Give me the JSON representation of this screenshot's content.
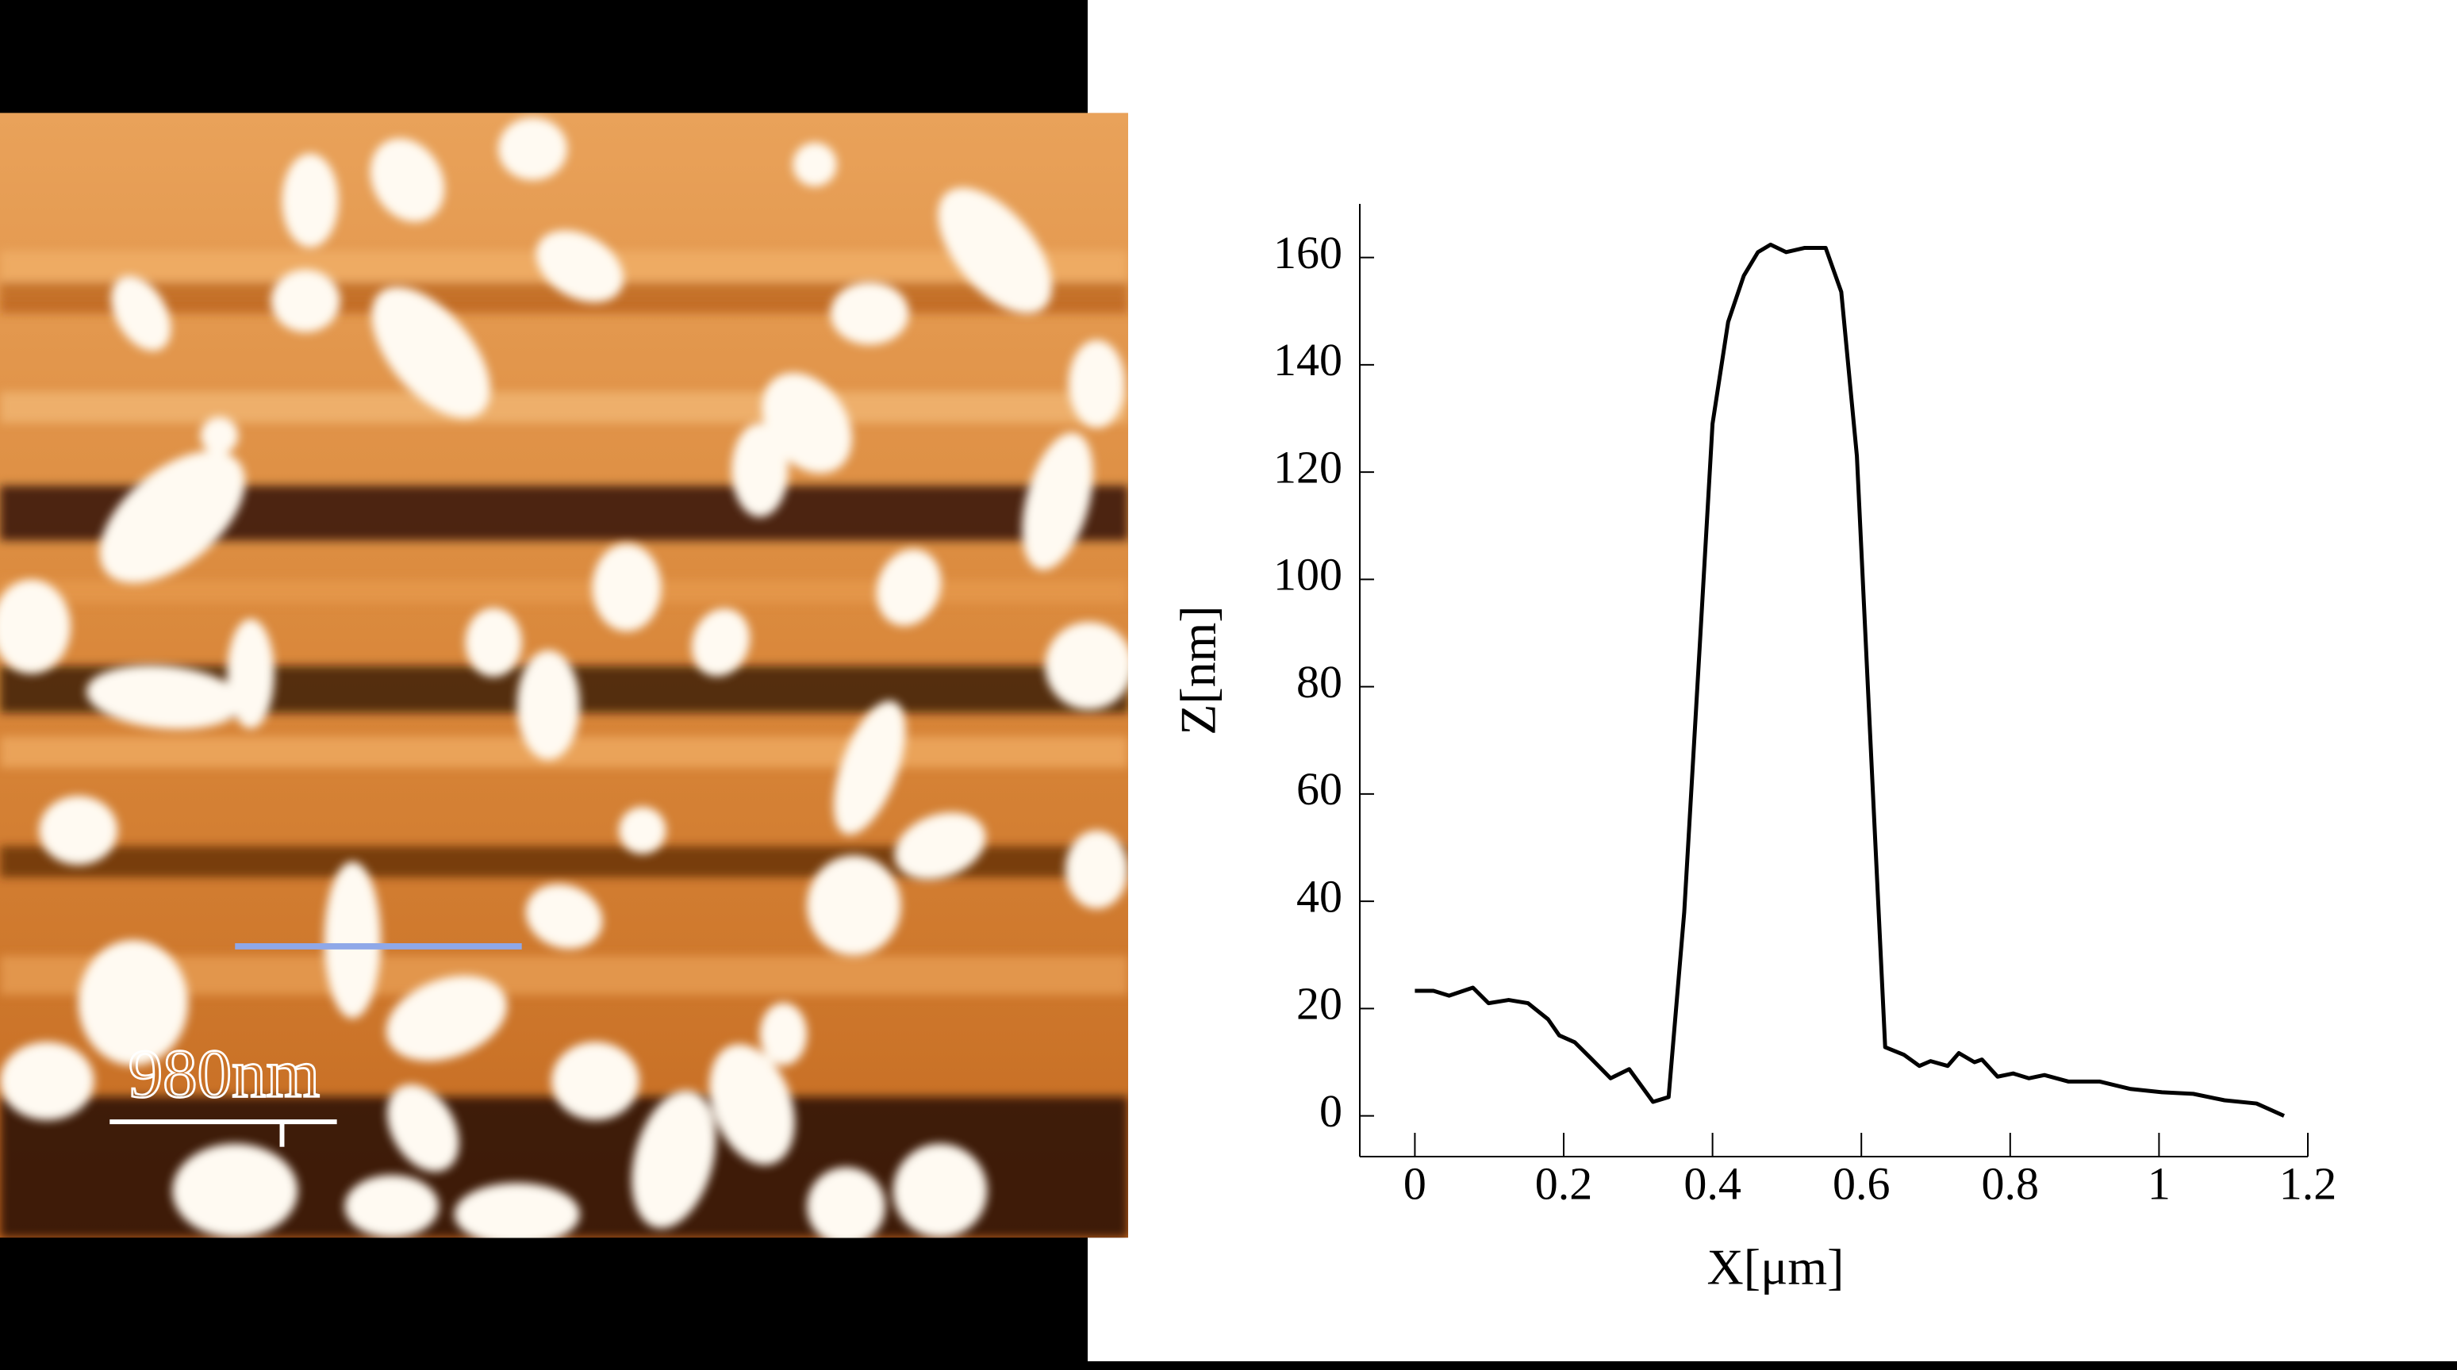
{
  "image": {
    "scale_bar_label": "980nm"
  },
  "chart_data": {
    "type": "line",
    "xlabel": "X[μm]",
    "ylabel": "Z[nm]",
    "x": [
      0,
      0.025,
      0.046,
      0.078,
      0.099,
      0.126,
      0.152,
      0.179,
      0.194,
      0.215,
      0.236,
      0.263,
      0.288,
      0.32,
      0.341,
      0.362,
      0.383,
      0.4,
      0.421,
      0.442,
      0.461,
      0.478,
      0.499,
      0.524,
      0.552,
      0.573,
      0.594,
      0.615,
      0.632,
      0.657,
      0.678,
      0.693,
      0.716,
      0.731,
      0.752,
      0.762,
      0.783,
      0.804,
      0.825,
      0.846,
      0.878,
      0.92,
      0.962,
      1.004,
      1.046,
      1.088,
      1.131,
      1.168
    ],
    "values": [
      23.3,
      23.3,
      22.4,
      23.9,
      21,
      21.6,
      21,
      18,
      15,
      13.7,
      10.8,
      7,
      8.7,
      2.6,
      3.5,
      38,
      88,
      129,
      148,
      156.6,
      161,
      162.4,
      161,
      161.8,
      161.8,
      153.6,
      123,
      61.8,
      12.8,
      11.4,
      9.3,
      10.2,
      9.3,
      11.7,
      10,
      10.5,
      7.3,
      7.9,
      7,
      7.6,
      6.4,
      6.4,
      5,
      4.4,
      4.1,
      2.9,
      2.3,
      0
    ],
    "color": "#000000",
    "xlim": [
      -0.074,
      1.2
    ],
    "ylim": [
      -7.6,
      170
    ],
    "xticks": [
      0,
      0.2,
      0.4,
      0.6,
      0.8,
      1,
      1.2
    ],
    "yticks": [
      0,
      20,
      40,
      60,
      80,
      100,
      120,
      140,
      160
    ]
  }
}
